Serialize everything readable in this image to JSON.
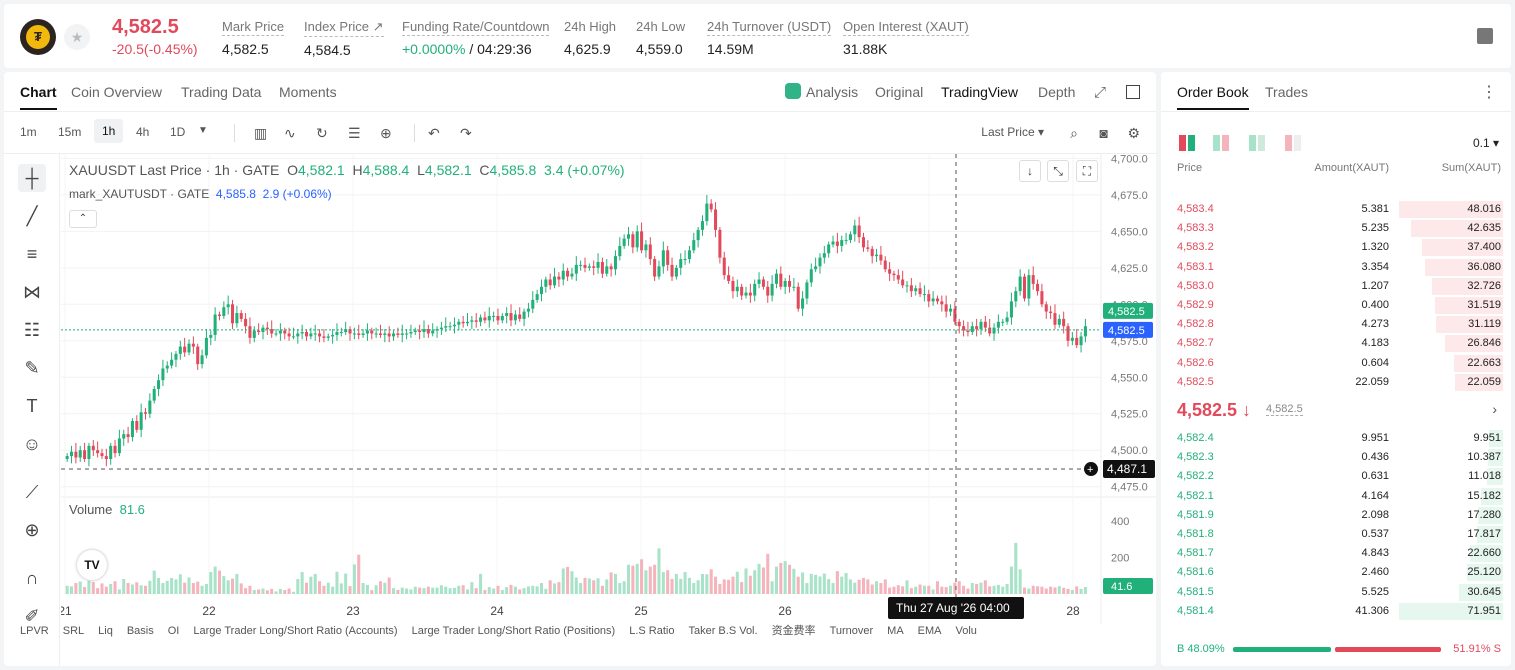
{
  "header": {
    "price": "4,582.5",
    "change": "-20.5(-0.45%)",
    "stats": [
      {
        "label": "Mark Price",
        "value": "4,582.5"
      },
      {
        "label": "Index Price ↗",
        "value": "4,584.5"
      },
      {
        "label": "Funding Rate/Countdown",
        "value_green": "+0.0000%",
        "value": " / 04:29:36"
      },
      {
        "label": "24h High",
        "value": "4,625.9"
      },
      {
        "label": "24h Low",
        "value": "4,559.0"
      },
      {
        "label": "24h Turnover (USDT)",
        "value": "14.59M"
      },
      {
        "label": "Open Interest (XAUT)",
        "value": "31.88K"
      }
    ],
    "logo_icon": "tether-gold-logo",
    "favorite_icon": "star-icon"
  },
  "chart_tabs": [
    "Chart",
    "Coin Overview",
    "Trading Data",
    "Moments"
  ],
  "chart_views": {
    "analysis": "Analysis",
    "original": "Original",
    "tradingview": "TradingView",
    "depth": "Depth"
  },
  "timeframes": [
    "1m",
    "15m",
    "1h",
    "4h",
    "1D"
  ],
  "active_timeframe": "1h",
  "last_price_select": "Last Price",
  "legend": {
    "symbol": "XAUUSDT Last Price · 1h · GATE",
    "O": "4,582.1",
    "H": "4,588.4",
    "L": "4,582.1",
    "C": "4,585.8",
    "change": "3.4 (+0.07%)",
    "mark_label": "mark_XAUTUSDT · GATE",
    "mark_value": "4,585.8",
    "mark_change": "2.9 (+0.06%)"
  },
  "volume": {
    "label": "Volume",
    "value": "81.6"
  },
  "crosshair": {
    "time_label": "Thu 27 Aug '26",
    "time_value": "04:00",
    "price_label": "4,487.1"
  },
  "price_tags": {
    "last": "4,582.5",
    "mark": "4,582.5",
    "volume": "41.6"
  },
  "bottom_indicators": [
    "LPVR",
    "SRL",
    "Liq",
    "Basis",
    "OI",
    "Large Trader Long/Short Ratio (Accounts)",
    "Large Trader Long/Short Ratio (Positions)",
    "L.S Ratio",
    "Taker B.S Vol.",
    "资金费率",
    "Turnover",
    "MA",
    "EMA",
    "Volu"
  ],
  "chart_data": {
    "type": "candlestick",
    "title": "XAUUSDT Last Price · 1h · GATE",
    "y_ticks": [
      4475,
      4500,
      4525,
      4550,
      4575,
      4600,
      4625,
      4650,
      4675,
      4700
    ],
    "y_tick_labels": [
      "4,475.0",
      "4,500.0",
      "4,525.0",
      "4,550.0",
      "4,575.0",
      "4,600.0",
      "4,625.0",
      "4,650.0",
      "4,675.0",
      "4,700.0"
    ],
    "ylim": [
      4470,
      4703
    ],
    "x_tick_labels": [
      "21",
      "22",
      "23",
      "24",
      "25",
      "26",
      "27",
      "28"
    ],
    "volume_ticks": [
      "200",
      "400"
    ],
    "volume_ylim": [
      0,
      520
    ],
    "close_series": [
      4496,
      4499,
      4495,
      4500,
      4494,
      4503,
      4500,
      4498,
      4496,
      4494,
      4503,
      4498,
      4508,
      4511,
      4509,
      4520,
      4514,
      4526,
      4525,
      4534,
      4542,
      4548,
      4556,
      4558,
      4562,
      4566,
      4571,
      4567,
      4573,
      4571,
      4559,
      4565,
      4577,
      4579,
      4593,
      4592,
      4598,
      4600,
      4587,
      4594,
      4590,
      4585,
      4577,
      4582,
      4581,
      4584,
      4583,
      4580,
      4580,
      4582,
      4580,
      4578,
      4578,
      4580,
      4581,
      4578,
      4580,
      4580,
      4578,
      4577,
      4578,
      4579,
      4581,
      4581,
      4583,
      4580,
      4580,
      4579,
      4580,
      4582,
      4580,
      4580,
      4579,
      4580,
      4578,
      4580,
      4579,
      4580,
      4580,
      4581,
      4582,
      4581,
      4583,
      4580,
      4582,
      4583,
      4584,
      4585,
      4585,
      4586,
      4588,
      4587,
      4588,
      4589,
      4588,
      4591,
      4589,
      4592,
      4592,
      4589,
      4592,
      4594,
      4589,
      4593,
      4590,
      4595,
      4597,
      4603,
      4607,
      4612,
      4617,
      4613,
      4619,
      4617,
      4623,
      4619,
      4621,
      4627,
      4627,
      4625,
      4626,
      4625,
      4629,
      4621,
      4626,
      4624,
      4633,
      4640,
      4645,
      4648,
      4639,
      4650,
      4637,
      4641,
      4631,
      4619,
      4626,
      4637,
      4627,
      4619,
      4625,
      4631,
      4631,
      4637,
      4644,
      4651,
      4657,
      4669,
      4665,
      4651,
      4632,
      4620,
      4616,
      4609,
      4612,
      4606,
      4608,
      4606,
      4614,
      4617,
      4612,
      4606,
      4614,
      4621,
      4612,
      4616,
      4612,
      4612,
      4597,
      4604,
      4615,
      4624,
      4626,
      4632,
      4635,
      4641,
      4643,
      4640,
      4644,
      4644,
      4648,
      4654,
      4646,
      4639,
      4638,
      4633,
      4634,
      4630,
      4624,
      4621,
      4620,
      4617,
      4613,
      4613,
      4609,
      4611,
      4607,
      4607,
      4602,
      4604,
      4602,
      4600,
      4595,
      4597,
      4588,
      4585,
      4582,
      4581,
      4585,
      4583,
      4588,
      4584,
      4580,
      4584,
      4588,
      4588,
      4591,
      4602,
      4609,
      4619,
      4604,
      4620,
      4614,
      4609,
      4600,
      4595,
      4594,
      4586,
      4590,
      4585,
      4575,
      4577,
      4572,
      4578,
      4585
    ],
    "volume_series": [
      45,
      42,
      60,
      68,
      38,
      72,
      65,
      32,
      58,
      40,
      55,
      70,
      25,
      82,
      60,
      52,
      64,
      48,
      45,
      72,
      128,
      88,
      60,
      72,
      88,
      80,
      108,
      62,
      90,
      60,
      68,
      45,
      55,
      120,
      150,
      128,
      98,
      75,
      84,
      110,
      58,
      32,
      45,
      22,
      25,
      30,
      20,
      28,
      14,
      28,
      22,
      30,
      12,
      82,
      120,
      62,
      95,
      110,
      70,
      45,
      62,
      40,
      122,
      58,
      112,
      43,
      162,
      215,
      60,
      50,
      21,
      48,
      70,
      62,
      90,
      32,
      22,
      35,
      30,
      25,
      40,
      35,
      32,
      40,
      35,
      35,
      48,
      40,
      32,
      34,
      45,
      48,
      25,
      65,
      32,
      110,
      22,
      38,
      30,
      45,
      22,
      38,
      50,
      40,
      25,
      32,
      42,
      45,
      42,
      60,
      28,
      75,
      58,
      65,
      140,
      148,
      125,
      90,
      60,
      88,
      85,
      75,
      86,
      45,
      80,
      118,
      110,
      60,
      70,
      160,
      155,
      165,
      190,
      130,
      150,
      160,
      250,
      120,
      130,
      82,
      110,
      83,
      120,
      88,
      60,
      75,
      110,
      108,
      135,
      95,
      55,
      80,
      78,
      95,
      122,
      65,
      140,
      100,
      130,
      165,
      145,
      220,
      70,
      150,
      170,
      180,
      160,
      138,
      95,
      118,
      60,
      110,
      105,
      96,
      112,
      82,
      60,
      125,
      95,
      115,
      80,
      62,
      78,
      88,
      80,
      52,
      70,
      60,
      80,
      35,
      40,
      48,
      42,
      75,
      32,
      40,
      52,
      45,
      45,
      25,
      70,
      40,
      38,
      46,
      62,
      70,
      45,
      30,
      60,
      55,
      62,
      75,
      42,
      45,
      50,
      40,
      55,
      150,
      280,
      135,
      35,
      30,
      45,
      42,
      40,
      30,
      40,
      36,
      43,
      34,
      28,
      22,
      42,
      28,
      38,
      44,
      32,
      30,
      20,
      38,
      42,
      34,
      45,
      48,
      52,
      58,
      95
    ]
  },
  "orderbook": {
    "tabs": [
      "Order Book",
      "Trades"
    ],
    "precision": "0.1",
    "headers": {
      "price": "Price",
      "amount": "Amount(XAUT)",
      "sum": "Sum(XAUT)"
    },
    "asks": [
      {
        "price": "4,583.4",
        "amount": "5.381",
        "sum": "48.016",
        "depth": 1.0
      },
      {
        "price": "4,583.3",
        "amount": "5.235",
        "sum": "42.635",
        "depth": 0.888
      },
      {
        "price": "4,583.2",
        "amount": "1.320",
        "sum": "37.400",
        "depth": 0.779
      },
      {
        "price": "4,583.1",
        "amount": "3.354",
        "sum": "36.080",
        "depth": 0.751
      },
      {
        "price": "4,583.0",
        "amount": "1.207",
        "sum": "32.726",
        "depth": 0.682
      },
      {
        "price": "4,582.9",
        "amount": "0.400",
        "sum": "31.519",
        "depth": 0.656
      },
      {
        "price": "4,582.8",
        "amount": "4.273",
        "sum": "31.119",
        "depth": 0.648
      },
      {
        "price": "4,582.7",
        "amount": "4.183",
        "sum": "26.846",
        "depth": 0.559
      },
      {
        "price": "4,582.6",
        "amount": "0.604",
        "sum": "22.663",
        "depth": 0.472
      },
      {
        "price": "4,582.5",
        "amount": "22.059",
        "sum": "22.059",
        "depth": 0.459
      }
    ],
    "mid_price": "4,582.5 ↓",
    "mid_mark": "4,582.5",
    "bids": [
      {
        "price": "4,582.4",
        "amount": "9.951",
        "sum": "9.951",
        "depth": 0.138
      },
      {
        "price": "4,582.3",
        "amount": "0.436",
        "sum": "10.387",
        "depth": 0.144
      },
      {
        "price": "4,582.2",
        "amount": "0.631",
        "sum": "11.018",
        "depth": 0.153
      },
      {
        "price": "4,582.1",
        "amount": "4.164",
        "sum": "15.182",
        "depth": 0.211
      },
      {
        "price": "4,581.9",
        "amount": "2.098",
        "sum": "17.280",
        "depth": 0.24
      },
      {
        "price": "4,581.8",
        "amount": "0.537",
        "sum": "17.817",
        "depth": 0.248
      },
      {
        "price": "4,581.7",
        "amount": "4.843",
        "sum": "22.660",
        "depth": 0.315
      },
      {
        "price": "4,581.6",
        "amount": "2.460",
        "sum": "25.120",
        "depth": 0.349
      },
      {
        "price": "4,581.5",
        "amount": "5.525",
        "sum": "30.645",
        "depth": 0.426
      },
      {
        "price": "4,581.4",
        "amount": "41.306",
        "sum": "71.951",
        "depth": 1.0
      }
    ],
    "buy_ratio": "B 48.09%",
    "sell_ratio": "51.91% S",
    "buy_fraction": 0.4809
  },
  "colors": {
    "up": "#21b07a",
    "down": "#e24a5b",
    "mark": "#2962ff"
  }
}
